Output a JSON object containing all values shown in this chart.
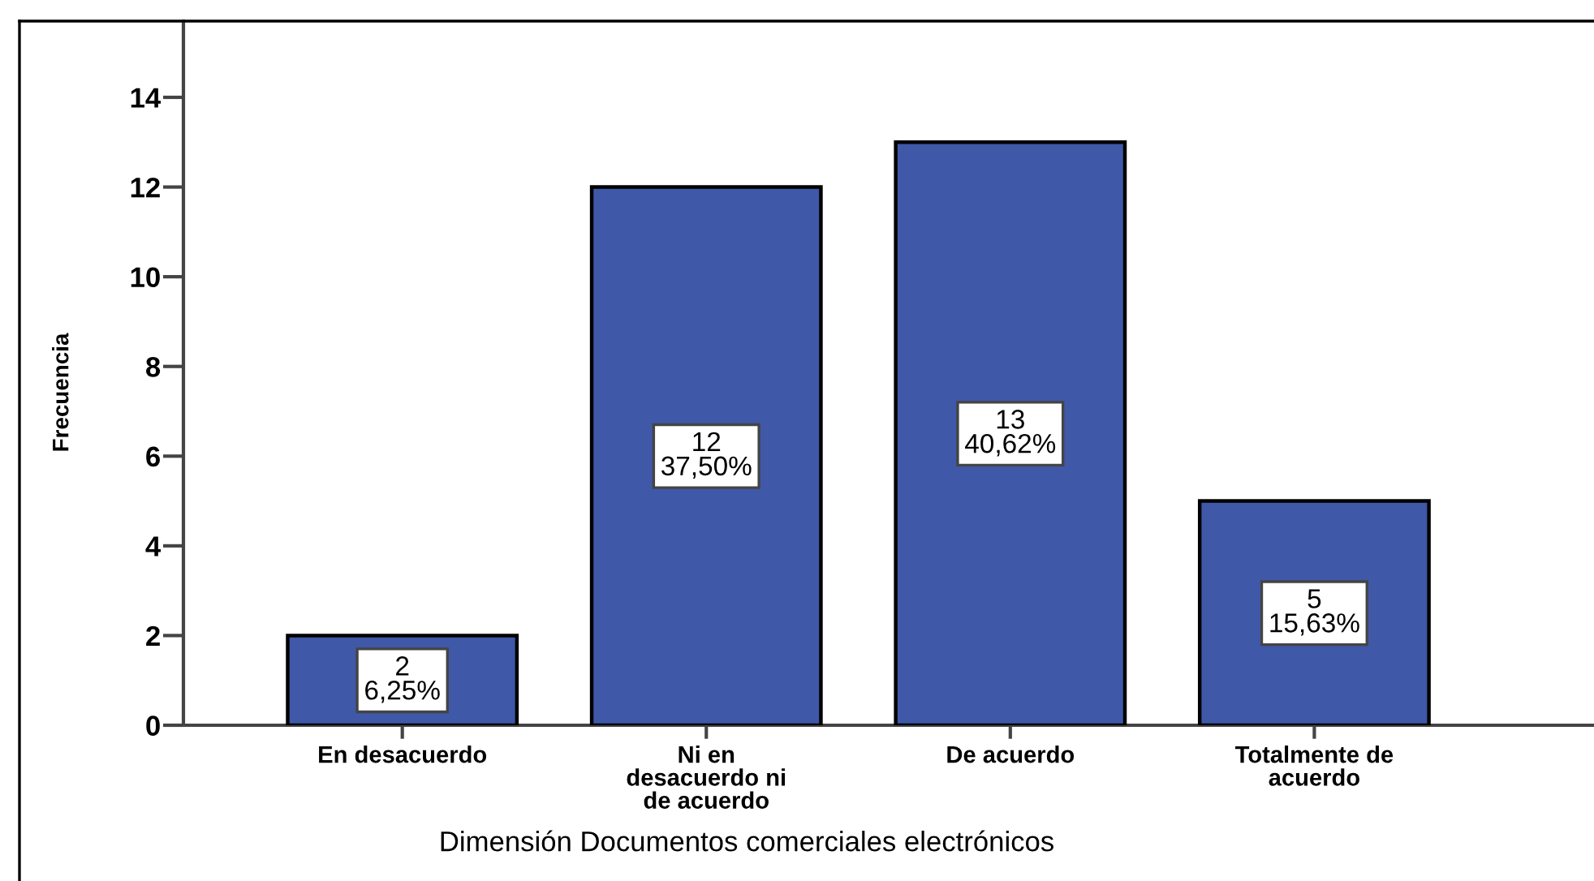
{
  "chart_data": {
    "type": "bar",
    "categories": [
      "En desacuerdo",
      "Ni en\ndesacuerdo ni\nde acuerdo",
      "De acuerdo",
      "Totalmente de\nacuerdo"
    ],
    "values": [
      2,
      12,
      13,
      5
    ],
    "color": "#3f58a8",
    "value_labels": [
      "2\n6,25%",
      "12\n37,50%",
      "13\n40,62%",
      "5\n15,63%"
    ],
    "xlabel": "Dimensión Documentos comerciales electrónicos",
    "ylabel": "Frecuencia",
    "ylim": [
      0,
      15.7
    ],
    "yticks": [
      0,
      2,
      4,
      6,
      8,
      10,
      12,
      14
    ]
  }
}
